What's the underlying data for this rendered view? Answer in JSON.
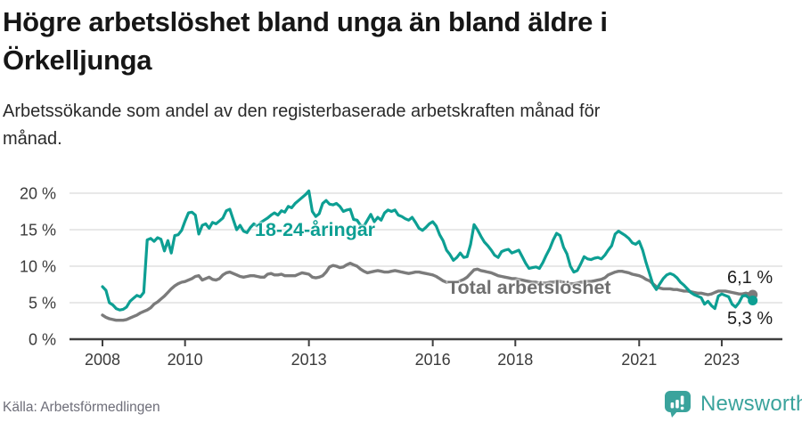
{
  "header": {
    "title_lines": [
      "Högre arbetslöshet bland unga än bland äldre i",
      "Örkelljunga"
    ],
    "subtitle_lines": [
      "Arbetssökande som andel av den registerbaserade arbetskraften månad för",
      "månad."
    ]
  },
  "footer": {
    "source": "Källa: Arbetsförmedlingen",
    "brand": "Newsworthy"
  },
  "colors": {
    "young_line": "#0d9f93",
    "total_line": "#7b7b7b",
    "total_label": "#6f6f6f",
    "grid": "#dadada",
    "axis": "#3f3f3f",
    "axis_text": "#3b3b3b",
    "title_text": "#161616",
    "source_text": "#6e6e79",
    "brand_teal": "#3aa39c"
  },
  "chart_data": {
    "type": "line",
    "title": "Högre arbetslöshet bland unga än bland äldre i Örkelljunga",
    "subtitle": "Arbetssökande som andel av den registerbaserade arbetskraften månad för månad.",
    "xlabel": "",
    "ylabel": "",
    "x_unit": "month",
    "x_start": "2008-01",
    "x_end": "2023-10",
    "start_year": 2008,
    "ylim": [
      0,
      21
    ],
    "grid": "horizontal",
    "legend": "inline-labels",
    "y_ticks": [
      {
        "value": 0,
        "label": "0 %"
      },
      {
        "value": 5,
        "label": "5 %"
      },
      {
        "value": 10,
        "label": "10 %"
      },
      {
        "value": 15,
        "label": "15 %"
      },
      {
        "value": 20,
        "label": "20 %"
      }
    ],
    "x_ticks": [
      {
        "year": 2008,
        "label": "2008"
      },
      {
        "year": 2010,
        "label": "2010"
      },
      {
        "year": 2013,
        "label": "2013"
      },
      {
        "year": 2016,
        "label": "2016"
      },
      {
        "year": 2018,
        "label": "2018"
      },
      {
        "year": 2021,
        "label": "2021"
      },
      {
        "year": 2023,
        "label": "2023"
      }
    ],
    "series": [
      {
        "id": "total",
        "name": "Total arbetslöshet",
        "label": "Total arbetslöshet",
        "end_label": "6,1 %",
        "end_value": 6.1,
        "color": "#7b7b7b",
        "width": 3.4,
        "values": [
          3.3,
          3.0,
          2.8,
          2.7,
          2.6,
          2.6,
          2.6,
          2.7,
          2.9,
          3.1,
          3.3,
          3.6,
          3.8,
          4.0,
          4.3,
          4.8,
          5.1,
          5.5,
          5.9,
          6.4,
          6.9,
          7.3,
          7.6,
          7.8,
          7.9,
          8.1,
          8.3,
          8.6,
          8.7,
          8.1,
          8.3,
          8.5,
          8.2,
          8.1,
          8.3,
          8.8,
          9.1,
          9.2,
          9.0,
          8.8,
          8.6,
          8.5,
          8.6,
          8.7,
          8.7,
          8.6,
          8.5,
          8.5,
          8.9,
          9.0,
          8.8,
          8.8,
          8.9,
          8.7,
          8.7,
          8.7,
          8.7,
          8.9,
          9.1,
          9.0,
          8.9,
          8.5,
          8.4,
          8.5,
          8.7,
          9.2,
          9.9,
          10.1,
          10.0,
          9.8,
          9.9,
          10.2,
          10.4,
          10.2,
          10.0,
          9.6,
          9.3,
          9.1,
          9.2,
          9.3,
          9.4,
          9.3,
          9.2,
          9.2,
          9.3,
          9.4,
          9.3,
          9.2,
          9.1,
          9.0,
          9.1,
          9.2,
          9.2,
          9.1,
          9.0,
          8.9,
          8.8,
          8.6,
          8.3,
          8.0,
          7.8,
          7.8,
          7.7,
          7.8,
          8.0,
          8.2,
          8.5,
          9.0,
          9.5,
          9.6,
          9.4,
          9.3,
          9.2,
          9.1,
          8.9,
          8.7,
          8.6,
          8.5,
          8.4,
          8.3,
          8.3,
          8.2,
          8.1,
          8.0,
          7.9,
          7.8,
          7.8,
          7.7,
          7.7,
          7.7,
          7.8,
          7.8,
          7.9,
          7.9,
          7.8,
          7.7,
          7.6,
          7.6,
          7.7,
          7.8,
          7.8,
          7.9,
          7.9,
          8.0,
          8.1,
          8.2,
          8.4,
          8.8,
          9.0,
          9.2,
          9.3,
          9.3,
          9.2,
          9.1,
          8.9,
          8.8,
          8.7,
          8.5,
          8.2,
          8.0,
          7.6,
          7.2,
          7.0,
          6.9,
          6.9,
          6.9,
          6.8,
          6.8,
          6.7,
          6.6,
          6.6,
          6.5,
          6.4,
          6.3,
          6.3,
          6.2,
          6.1,
          6.2,
          6.4,
          6.6,
          6.6,
          6.6,
          6.5,
          6.4,
          6.3,
          6.2,
          6.2,
          6.3,
          6.2,
          6.1
        ]
      },
      {
        "id": "young",
        "name": "18-24-åringar",
        "label": "18-24-åringar",
        "end_label": "5,3 %",
        "end_value": 5.3,
        "color": "#0d9f93",
        "width": 3.2,
        "values": [
          7.2,
          6.7,
          5.0,
          4.7,
          4.2,
          4.0,
          4.1,
          4.4,
          5.2,
          5.6,
          6.0,
          5.8,
          6.4,
          13.6,
          13.8,
          13.4,
          13.9,
          13.7,
          12.1,
          13.5,
          11.8,
          14.2,
          14.3,
          14.9,
          16.2,
          17.3,
          17.4,
          17.0,
          14.4,
          15.6,
          15.8,
          15.2,
          16.0,
          15.8,
          16.2,
          16.6,
          17.6,
          17.8,
          16.4,
          15.0,
          15.6,
          14.8,
          14.6,
          15.3,
          15.8,
          15.5,
          16.0,
          16.3,
          16.6,
          17.0,
          17.3,
          17.0,
          17.6,
          17.4,
          18.2,
          18.0,
          18.6,
          19.0,
          19.4,
          19.8,
          20.3,
          17.5,
          16.8,
          17.2,
          18.6,
          19.0,
          18.5,
          18.4,
          18.6,
          18.2,
          17.5,
          17.7,
          17.8,
          16.4,
          16.3,
          15.6,
          15.5,
          16.3,
          17.1,
          16.1,
          16.7,
          16.3,
          17.3,
          17.7,
          17.5,
          17.7,
          17.0,
          16.8,
          16.5,
          16.3,
          16.7,
          16.0,
          15.2,
          14.9,
          15.3,
          15.8,
          16.1,
          15.5,
          14.3,
          13.5,
          12.2,
          11.6,
          10.8,
          11.2,
          11.8,
          11.2,
          11.3,
          13.0,
          15.7,
          15.0,
          14.1,
          13.3,
          12.8,
          12.2,
          11.5,
          11.2,
          12.0,
          12.2,
          12.3,
          11.8,
          12.0,
          12.2,
          11.3,
          10.4,
          9.7,
          9.8,
          9.9,
          9.7,
          10.5,
          11.5,
          12.4,
          13.6,
          14.5,
          14.2,
          12.6,
          11.7,
          10.0,
          9.2,
          9.4,
          10.3,
          11.3,
          11.0,
          10.9,
          11.1,
          11.2,
          11.0,
          11.5,
          12.2,
          12.8,
          14.4,
          14.8,
          14.5,
          14.2,
          13.8,
          13.2,
          13.0,
          13.4,
          12.2,
          10.5,
          9.0,
          7.5,
          6.8,
          7.6,
          8.3,
          8.8,
          9.0,
          8.8,
          8.4,
          7.8,
          7.4,
          6.9,
          6.4,
          6.1,
          5.9,
          5.7,
          4.8,
          5.2,
          4.6,
          4.2,
          5.9,
          6.2,
          6.0,
          5.8,
          4.8,
          4.4,
          5.0,
          5.9,
          6.0,
          5.6,
          5.3
        ]
      }
    ]
  }
}
